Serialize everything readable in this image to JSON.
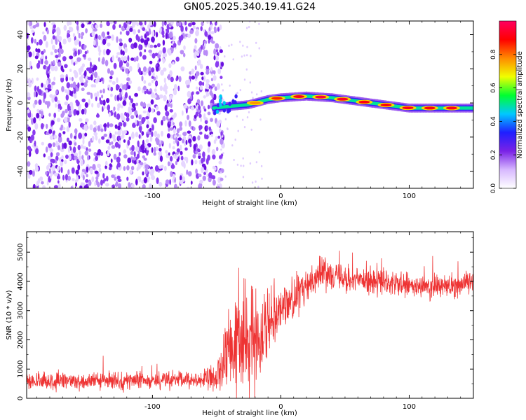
{
  "figure_title": "GN05.2025.340.19.41.G24",
  "chart_data": [
    {
      "type": "heatmap",
      "panel": "top",
      "title": "GN05.2025.340.19.41.G24",
      "xlabel": "Height of straight line (km)",
      "ylabel": "Frequency (Hz)",
      "xlim": [
        -198,
        150
      ],
      "ylim": [
        -50,
        48
      ],
      "x_ticks": [
        -100,
        0,
        100
      ],
      "y_ticks": [
        -40,
        -20,
        0,
        20,
        40
      ],
      "colorbar": {
        "label": "Normalized spectral amplitude",
        "range": [
          0,
          1
        ],
        "ticks": [
          "0.0",
          "0.2",
          "0.4",
          "0.6",
          "0.8"
        ],
        "colors": [
          "#ffffff",
          "#d7b8ff",
          "#7a22e6",
          "#1f1fff",
          "#00c8ff",
          "#00ff30",
          "#f0ff00",
          "#ff8a00",
          "#ff0000",
          "#ff0060"
        ]
      },
      "noise_region": {
        "x": [
          -198,
          -47
        ],
        "y": [
          -50,
          48
        ],
        "amplitude": "0.0-0.2"
      },
      "ridge": {
        "x": [
          -52,
          -40,
          -25,
          -10,
          0,
          20,
          40,
          60,
          80,
          100,
          120,
          140,
          150
        ],
        "frequency": [
          -3,
          -2,
          -1,
          2,
          3,
          4,
          3,
          1,
          -1,
          -3,
          -3,
          -3,
          -3
        ],
        "peak_amplitude": [
          0.45,
          0.55,
          0.7,
          0.9,
          0.85,
          0.95,
          0.95,
          0.9,
          0.9,
          0.92,
          0.9,
          0.92,
          0.85
        ]
      }
    },
    {
      "type": "line",
      "panel": "bottom",
      "xlabel": "Height of straight line (km)",
      "ylabel": "SNR (10 * v/v)",
      "xlim": [
        -198,
        150
      ],
      "ylim": [
        0,
        5700
      ],
      "x_ticks": [
        -100,
        0,
        100
      ],
      "y_ticks": [
        0,
        1000,
        2000,
        3000,
        4000,
        5000
      ],
      "series": [
        {
          "name": "SNR",
          "color": "#ee3333",
          "x": [
            -198,
            -150,
            -100,
            -60,
            -50,
            -45,
            -40,
            -35,
            -30,
            -25,
            -20,
            -15,
            -10,
            -5,
            0,
            10,
            20,
            25,
            30,
            40,
            50,
            70,
            90,
            100,
            120,
            140,
            150
          ],
          "mean": [
            560,
            590,
            610,
            640,
            700,
            1100,
            1500,
            1700,
            1900,
            2000,
            2100,
            2300,
            2700,
            3000,
            3100,
            3400,
            3800,
            4100,
            4300,
            4300,
            4100,
            4000,
            3900,
            3800,
            3800,
            3900,
            4000
          ],
          "spread": [
            330,
            320,
            320,
            330,
            500,
            1300,
            1800,
            2100,
            2000,
            1800,
            1700,
            1500,
            1300,
            1100,
            950,
            800,
            650,
            550,
            600,
            550,
            500,
            480,
            480,
            460,
            450,
            470,
            450
          ]
        }
      ]
    }
  ]
}
